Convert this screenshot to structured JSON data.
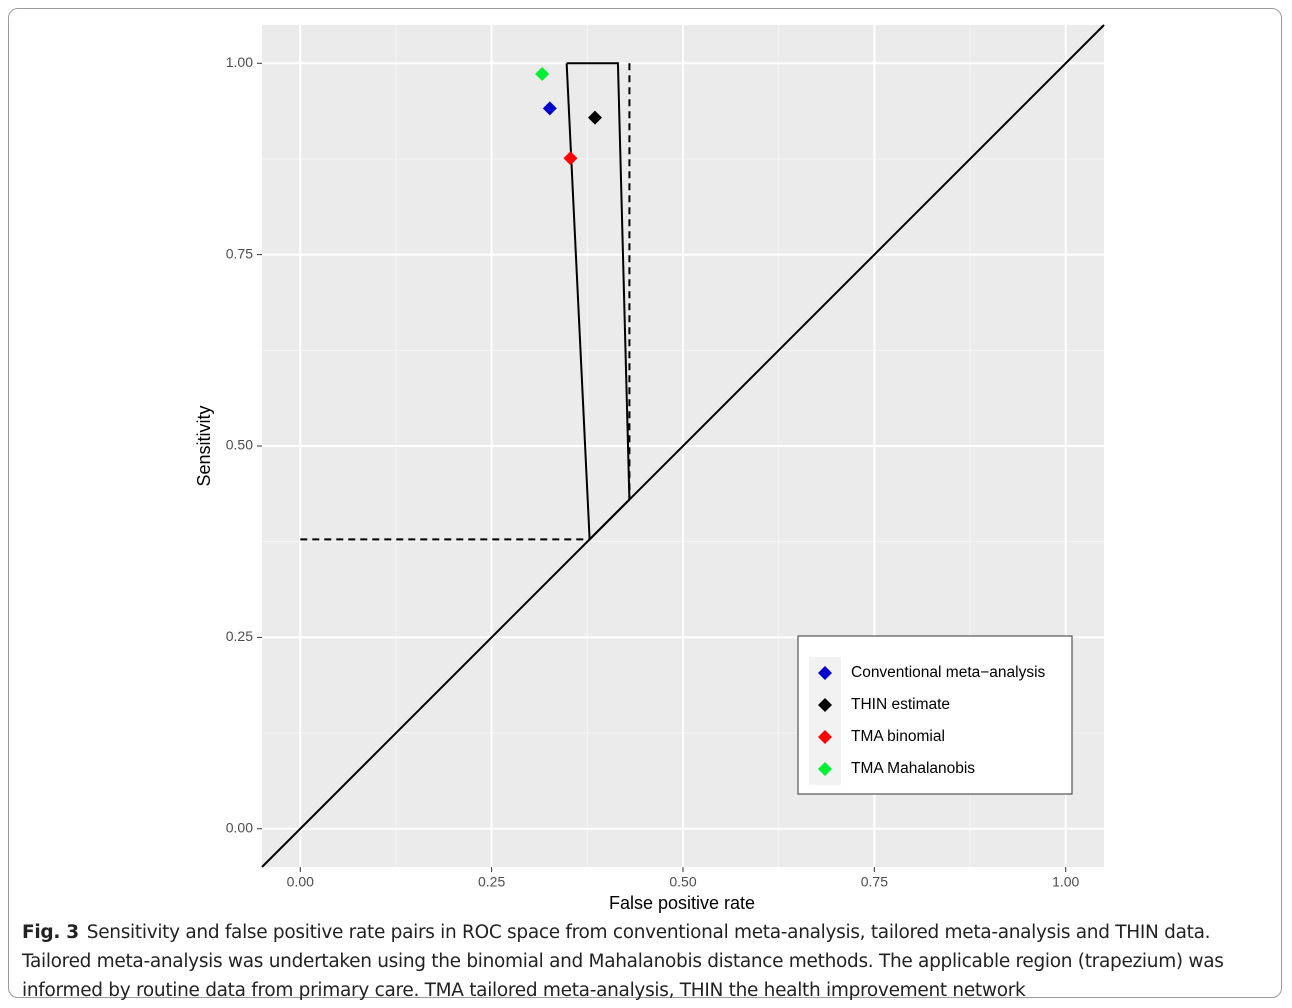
{
  "chart_data": {
    "type": "scatter",
    "x_label": "False positive rate",
    "y_label": "Sensitivity",
    "xlim": [
      -0.05,
      1.05
    ],
    "ylim": [
      -0.05,
      1.05
    ],
    "xticks": [
      {
        "value": 0,
        "label": "0.00"
      },
      {
        "value": 0.25,
        "label": "0.25"
      },
      {
        "value": 0.5,
        "label": "0.50"
      },
      {
        "value": 0.75,
        "label": "0.75"
      },
      {
        "value": 1,
        "label": "1.00"
      }
    ],
    "yticks": [
      {
        "value": 0,
        "label": "0.00"
      },
      {
        "value": 0.25,
        "label": "0.25"
      },
      {
        "value": 0.5,
        "label": "0.50"
      },
      {
        "value": 0.75,
        "label": "0.75"
      },
      {
        "value": 1,
        "label": "1.00"
      }
    ],
    "xminor_ticks": [
      0.125,
      0.375,
      0.625,
      0.875
    ],
    "yminor_ticks": [
      0.125,
      0.375,
      0.625,
      0.875
    ],
    "grid": true,
    "legend_position": "bottom-right",
    "series": [
      {
        "name": "Conventional meta−analysis",
        "color": "#0000cd",
        "x": [
          0.326
        ],
        "values": [
          0.941
        ]
      },
      {
        "name": "THIN estimate",
        "color": "#000000",
        "x": [
          0.385
        ],
        "values": [
          0.929
        ]
      },
      {
        "name": "TMA binomial",
        "color": "#ff0000",
        "x": [
          0.353
        ],
        "values": [
          0.876
        ]
      },
      {
        "name": "TMA Mahalanobis",
        "color": "#00ee33",
        "x": [
          0.316
        ],
        "values": [
          0.986
        ]
      }
    ],
    "lines": [
      {
        "style": "solid",
        "x": [
          -0.05,
          1.05
        ],
        "values": [
          -0.05,
          1.05
        ]
      },
      {
        "style": "solid",
        "x": [
          0.348,
          0.415,
          0.43,
          0.378,
          0.348
        ],
        "values": [
          1,
          1,
          0.43,
          0.378,
          1
        ]
      },
      {
        "style": "dashed",
        "x": [
          0.43,
          0.43
        ],
        "values": [
          1,
          0.43
        ]
      },
      {
        "style": "dashed",
        "x": [
          0,
          0.378
        ],
        "values": [
          0.378,
          0.378
        ]
      }
    ]
  },
  "caption": {
    "label": "Fig. 3",
    "text": "Sensitivity and false positive rate pairs in ROC space from conventional meta-analysis, tailored meta-analysis and THIN data. Tailored meta-analysis was undertaken using the binomial and Mahalanobis distance methods. The applicable region (trapezium) was informed by routine data from primary care. TMA tailored meta-analysis, THIN the health improvement network"
  }
}
